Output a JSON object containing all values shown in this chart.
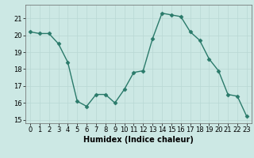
{
  "x": [
    0,
    1,
    2,
    3,
    4,
    5,
    6,
    7,
    8,
    9,
    10,
    11,
    12,
    13,
    14,
    15,
    16,
    17,
    18,
    19,
    20,
    21,
    22,
    23
  ],
  "y": [
    20.2,
    20.1,
    20.1,
    19.5,
    18.4,
    16.1,
    15.8,
    16.5,
    16.5,
    16.0,
    16.8,
    17.8,
    17.9,
    19.8,
    21.3,
    21.2,
    21.1,
    20.2,
    19.7,
    18.6,
    17.9,
    16.5,
    16.4,
    15.2
  ],
  "line_color": "#2a7a6a",
  "marker": "D",
  "markersize": 2.5,
  "linewidth": 1.0,
  "xlabel": "Humidex (Indice chaleur)",
  "xlim": [
    -0.5,
    23.5
  ],
  "ylim": [
    14.8,
    21.8
  ],
  "yticks": [
    15,
    16,
    17,
    18,
    19,
    20,
    21
  ],
  "xticks": [
    0,
    1,
    2,
    3,
    4,
    5,
    6,
    7,
    8,
    9,
    10,
    11,
    12,
    13,
    14,
    15,
    16,
    17,
    18,
    19,
    20,
    21,
    22,
    23
  ],
  "bg_color": "#cce8e4",
  "grid_color": "#b8d8d4",
  "fig_bg": "#cce8e4",
  "xlabel_fontsize": 7,
  "tick_fontsize": 6
}
